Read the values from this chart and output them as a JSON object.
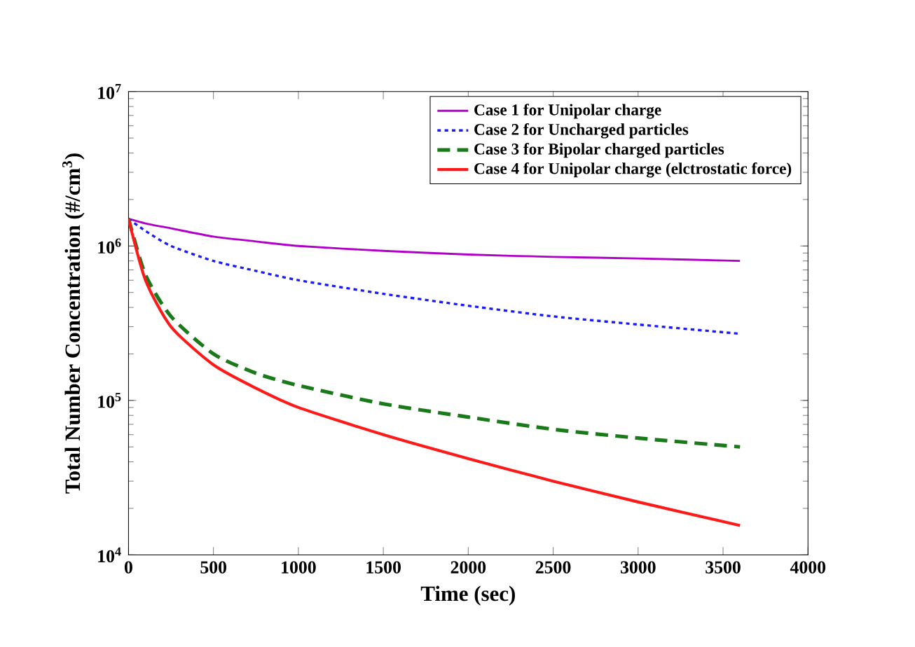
{
  "chart_data": {
    "type": "line",
    "xlabel": "Time (sec)",
    "ylabel": "Total Number Concentration (#/cm$^{3}$)",
    "log": "y",
    "grid": false,
    "legend": "top right",
    "marker": "none",
    "xlim": [
      0,
      4000
    ],
    "xticks": [
      0,
      500,
      1000,
      1500,
      2000,
      2500,
      3000,
      3500,
      4000
    ],
    "ylim": [
      10000,
      10000000
    ],
    "yticks": [
      {
        "value": 10000,
        "label": "10$^{4}$"
      },
      {
        "value": 100000,
        "label": "10$^{5}$"
      },
      {
        "value": 1000000,
        "label": "10$^{6}$"
      },
      {
        "value": 10000000,
        "label": "10$^{7}$"
      }
    ],
    "x": [
      0,
      100,
      250,
      500,
      750,
      1000,
      1500,
      2000,
      2500,
      3000,
      3600
    ],
    "series": [
      {
        "name": "Case 1 for Unipolar charge",
        "color": "#b000c8",
        "line_style": "solid",
        "values": [
          1500000,
          1400000,
          1300000,
          1150000,
          1070000,
          1000000,
          930000,
          880000,
          850000,
          830000,
          800000
        ]
      },
      {
        "name": "Case 2 for Uncharged particles",
        "color": "#1a1aff",
        "line_style": "dotted",
        "values": [
          1500000,
          1250000,
          1000000,
          800000,
          690000,
          600000,
          490000,
          410000,
          350000,
          310000,
          270000
        ]
      },
      {
        "name": "Case 3 for Bipolar charged particles",
        "color": "#1a7a1a",
        "line_style": "dashed",
        "values": [
          1500000,
          650000,
          350000,
          200000,
          150000,
          125000,
          95000,
          78000,
          65000,
          57000,
          50000
        ]
      },
      {
        "name": "Case 4 for Unipolar charge (elctrostatic force)",
        "color": "#ff1a1a",
        "line_style": "solid",
        "values": [
          1500000,
          600000,
          300000,
          170000,
          120000,
          90000,
          60000,
          42000,
          30000,
          22000,
          15500
        ]
      }
    ]
  }
}
